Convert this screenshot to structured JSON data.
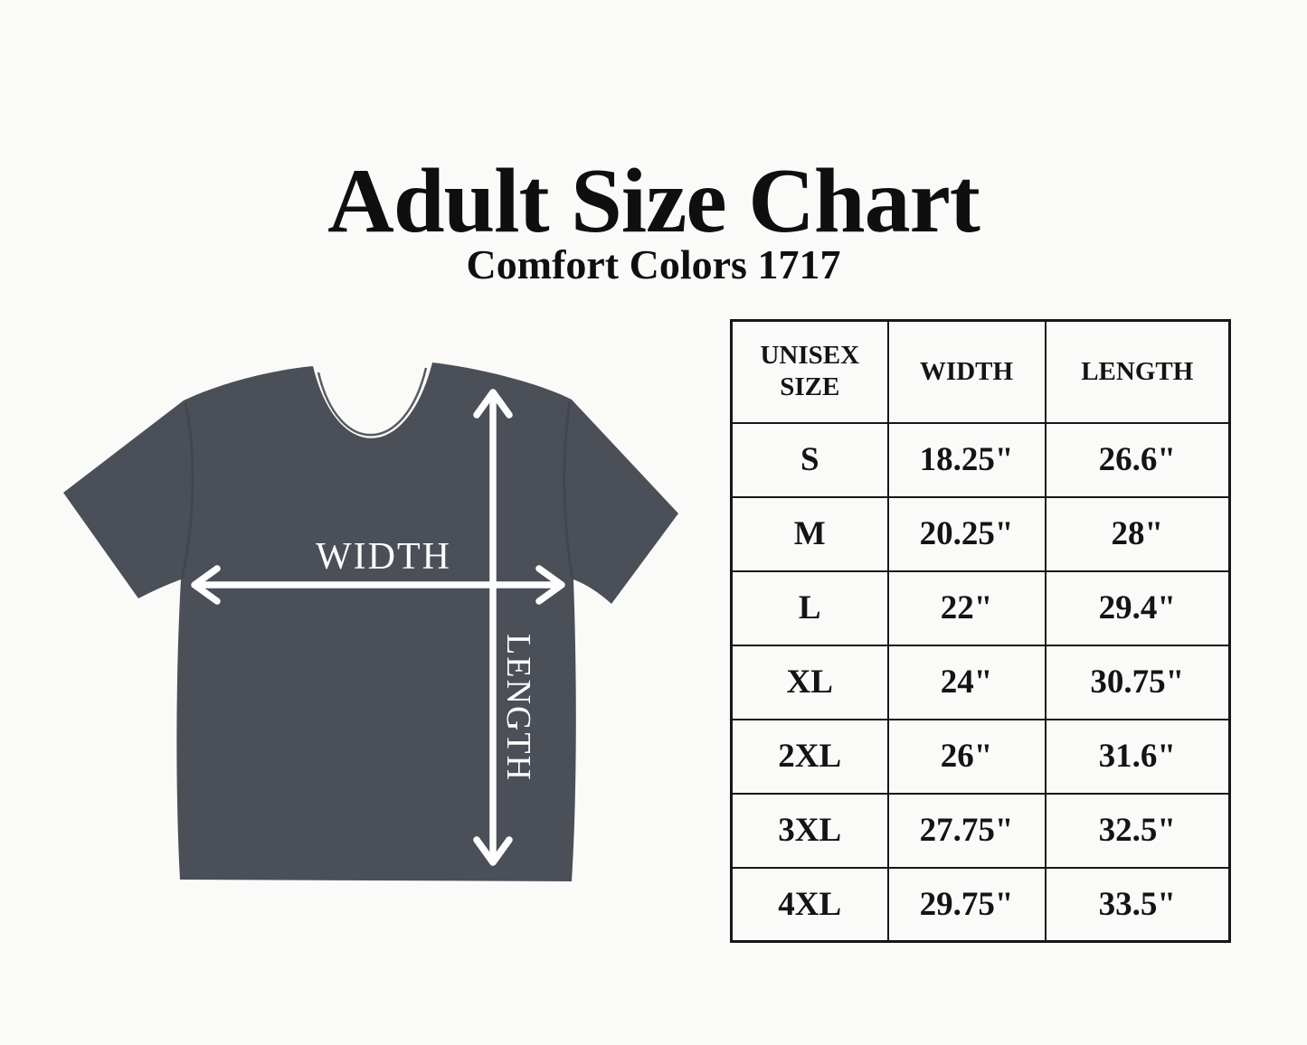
{
  "page": {
    "title": "Adult Size Chart",
    "subtitle": "Comfort Colors 1717"
  },
  "diagram": {
    "width_label": "WIDTH",
    "length_label": "LENGTH",
    "shirt_color": "#4b4f58",
    "arrow_color": "#fdfdfd"
  },
  "table": {
    "headers": [
      "UNISEX SIZE",
      "WIDTH",
      "LENGTH"
    ],
    "rows": [
      {
        "size": "S",
        "width": "18.25\"",
        "length": "26.6\""
      },
      {
        "size": "M",
        "width": "20.25\"",
        "length": "28\""
      },
      {
        "size": "L",
        "width": "22\"",
        "length": "29.4\""
      },
      {
        "size": "XL",
        "width": "24\"",
        "length": "30.75\""
      },
      {
        "size": "2XL",
        "width": "26\"",
        "length": "31.6\""
      },
      {
        "size": "3XL",
        "width": "27.75\"",
        "length": "32.5\""
      },
      {
        "size": "4XL",
        "width": "29.75\"",
        "length": "33.5\""
      }
    ]
  }
}
